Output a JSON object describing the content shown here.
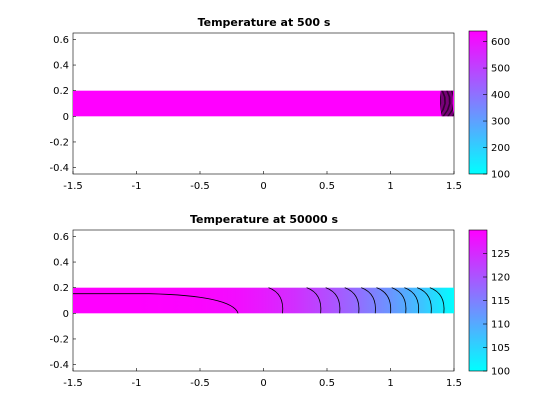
{
  "chart_data": [
    {
      "type": "heatmap",
      "title": "Temperature at 500 s",
      "xlim": [
        -1.5,
        1.5
      ],
      "ylim": [
        -0.45,
        0.65
      ],
      "xticks": [
        "-1.5",
        "-1",
        "-0.5",
        "0",
        "0.5",
        "1",
        "1.5"
      ],
      "yticks": [
        "-0.4",
        "-0.2",
        "0",
        "0.2",
        "0.4",
        "0.6"
      ],
      "domain": {
        "x": [
          -1.5,
          1.5
        ],
        "y": [
          0,
          0.2
        ]
      },
      "colorbar": {
        "min": 100,
        "max": 640,
        "ticks": [
          "100",
          "200",
          "300",
          "400",
          "500",
          "600"
        ]
      },
      "colormap": [
        "#00ffff",
        "#ff00ff"
      ],
      "contour_x": [
        1.4,
        1.41,
        1.42,
        1.43,
        1.44,
        1.45,
        1.46,
        1.47,
        1.48,
        1.49
      ],
      "grid": false
    },
    {
      "type": "heatmap",
      "title": "Temperature at 50000 s",
      "xlim": [
        -1.5,
        1.5
      ],
      "ylim": [
        -0.45,
        0.65
      ],
      "xticks": [
        "-1.5",
        "-1",
        "-0.5",
        "0",
        "0.5",
        "1",
        "1.5"
      ],
      "yticks": [
        "-0.4",
        "-0.2",
        "0",
        "0.2",
        "0.4",
        "0.6"
      ],
      "domain": {
        "x": [
          -1.5,
          1.5
        ],
        "y": [
          0,
          0.2
        ]
      },
      "colorbar": {
        "min": 100,
        "max": 130,
        "ticks": [
          "100",
          "105",
          "110",
          "115",
          "120",
          "125"
        ]
      },
      "colormap": [
        "#00ffff",
        "#ff00ff"
      ],
      "temperature_x": [
        -1.5,
        -1.0,
        -0.5,
        -0.2,
        0.0,
        0.25,
        0.5,
        0.75,
        1.0,
        1.25,
        1.5
      ],
      "temperature_values": [
        130,
        130,
        129.5,
        128.5,
        127,
        124.5,
        121,
        117,
        112.5,
        107,
        100
      ],
      "contour_x": [
        -0.2,
        0.15,
        0.45,
        0.6,
        0.75,
        0.88,
        1.0,
        1.12,
        1.22,
        1.32,
        1.42
      ],
      "grid": false
    }
  ]
}
